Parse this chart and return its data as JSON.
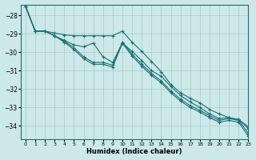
{
  "xlabel": "Humidex (Indice chaleur)",
  "bg_color": "#cce8e8",
  "grid_color": "#aacccc",
  "line_color": "#1a7070",
  "xlim": [
    -0.5,
    23
  ],
  "ylim": [
    -34.7,
    -27.4
  ],
  "yticks": [
    -28,
    -29,
    -30,
    -31,
    -32,
    -33,
    -34
  ],
  "xticks": [
    0,
    1,
    2,
    3,
    4,
    5,
    6,
    7,
    8,
    9,
    10,
    11,
    12,
    13,
    14,
    15,
    16,
    17,
    18,
    19,
    20,
    21,
    22,
    23
  ],
  "series": [
    [
      -27.5,
      -28.85,
      -28.85,
      -28.95,
      -29.05,
      -29.1,
      -29.1,
      -29.1,
      -29.1,
      -29.1,
      -28.85,
      -29.45,
      -29.95,
      -30.5,
      -31.05,
      -31.75,
      -32.2,
      -32.5,
      -32.75,
      -33.1,
      -33.35,
      -33.55,
      -33.65,
      -34.05
    ],
    [
      -27.5,
      -28.85,
      -28.85,
      -29.1,
      -29.35,
      -29.6,
      -29.7,
      -29.5,
      -30.25,
      -30.55,
      -29.5,
      -29.95,
      -30.45,
      -31.0,
      -31.3,
      -31.85,
      -32.35,
      -32.7,
      -33.0,
      -33.35,
      -33.6,
      -33.55,
      -33.65,
      -34.15
    ],
    [
      -27.5,
      -28.85,
      -28.85,
      -29.1,
      -29.4,
      -29.75,
      -30.25,
      -30.55,
      -30.55,
      -30.7,
      -29.45,
      -30.1,
      -30.65,
      -31.15,
      -31.55,
      -32.1,
      -32.55,
      -32.9,
      -33.15,
      -33.45,
      -33.7,
      -33.6,
      -33.7,
      -34.4
    ],
    [
      -27.5,
      -28.85,
      -28.85,
      -29.1,
      -29.45,
      -29.85,
      -30.35,
      -30.65,
      -30.65,
      -30.8,
      -29.5,
      -30.2,
      -30.75,
      -31.25,
      -31.65,
      -32.2,
      -32.65,
      -33.0,
      -33.25,
      -33.55,
      -33.8,
      -33.7,
      -33.8,
      -34.55
    ]
  ]
}
